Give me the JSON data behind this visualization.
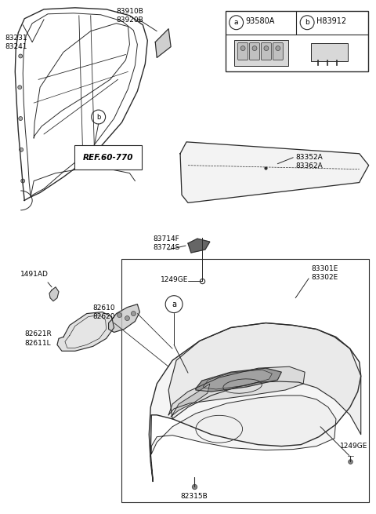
{
  "background_color": "#ffffff",
  "line_color": "#2a2a2a",
  "text_color": "#000000",
  "figure_width": 4.8,
  "figure_height": 6.55,
  "dpi": 100,
  "labels": {
    "83231_83241": "83231\n83241",
    "83910B_83920B": "83910B\n83920B",
    "ref": "REF.60-770",
    "83352A_83362A": "83352A\n83362A",
    "93580A": "93580A",
    "H83912": "H83912",
    "83714F_83724S": "83714F\n83724S",
    "1249GE_top": "1249GE",
    "1249GE_bot": "1249GE",
    "83301E_83302E": "83301E\n83302E",
    "82610_82620": "82610\n82620",
    "82621R_82611L": "82621R\n82611L",
    "1491AD": "1491AD",
    "82315B": "82315B",
    "circle_a": "a",
    "circle_b": "b"
  }
}
